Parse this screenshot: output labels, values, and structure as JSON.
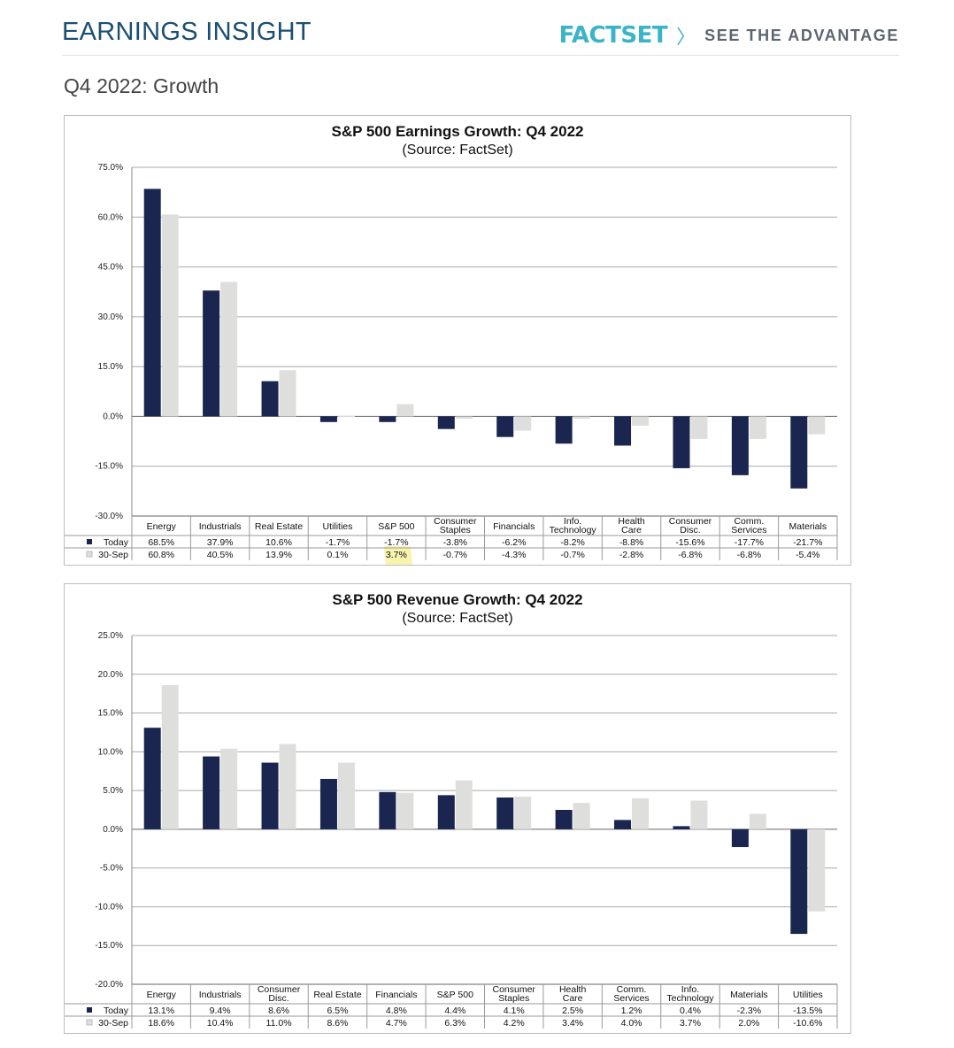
{
  "header": {
    "title": "EARNINGS INSIGHT",
    "brand_logo": "FACTSET",
    "brand_chevron": "〉",
    "brand_tagline": "SEE THE ADVANTAGE"
  },
  "section_title": "Q4 2022: Growth",
  "colors": {
    "today": "#1a2650",
    "sep30": "#dedfdc",
    "brand": "#3bb3c8",
    "header_title": "#1b4f72",
    "highlight": "#f7f2a0"
  },
  "chart_data": [
    {
      "type": "bar",
      "title": "S&P 500 Earnings Growth: Q4 2022",
      "subtitle": "(Source: FactSet)",
      "categories": [
        "Energy",
        "Industrials",
        "Real Estate",
        "Utilities",
        "S&P 500",
        "Consumer Staples",
        "Financials",
        "Info. Technology",
        "Health Care",
        "Consumer Disc.",
        "Comm. Services",
        "Materials"
      ],
      "series": [
        {
          "name": "Today",
          "values": [
            68.5,
            37.9,
            10.6,
            -1.7,
            -1.7,
            -3.8,
            -6.2,
            -8.2,
            -8.8,
            -15.6,
            -17.7,
            -21.7
          ]
        },
        {
          "name": "30-Sep",
          "values": [
            60.8,
            40.5,
            13.9,
            0.1,
            3.7,
            -0.7,
            -4.3,
            -0.7,
            -2.8,
            -6.8,
            -6.8,
            -5.4
          ]
        }
      ],
      "ylim": [
        -30,
        75
      ],
      "yticks": [
        -30,
        -15,
        0,
        15,
        30,
        45,
        60,
        75
      ],
      "grid": true,
      "legend": "data-table",
      "highlight_category": "S&P 500"
    },
    {
      "type": "bar",
      "title": "S&P 500 Revenue Growth: Q4 2022",
      "subtitle": "(Source: FactSet)",
      "categories": [
        "Energy",
        "Industrials",
        "Consumer Disc.",
        "Real Estate",
        "Financials",
        "S&P 500",
        "Consumer Staples",
        "Health Care",
        "Comm. Services",
        "Info. Technology",
        "Materials",
        "Utilities"
      ],
      "series": [
        {
          "name": "Today",
          "values": [
            13.1,
            9.4,
            8.6,
            6.5,
            4.8,
            4.4,
            4.1,
            2.5,
            1.2,
            0.4,
            -2.3,
            -13.5
          ]
        },
        {
          "name": "30-Sep",
          "values": [
            18.6,
            10.4,
            11.0,
            8.6,
            4.7,
            6.3,
            4.2,
            3.4,
            4.0,
            3.7,
            2.0,
            -10.6
          ]
        }
      ],
      "ylim": [
        -20,
        25
      ],
      "yticks": [
        -20,
        -15,
        -10,
        -5,
        0,
        5,
        10,
        15,
        20,
        25
      ],
      "grid": true,
      "legend": "data-table"
    }
  ]
}
